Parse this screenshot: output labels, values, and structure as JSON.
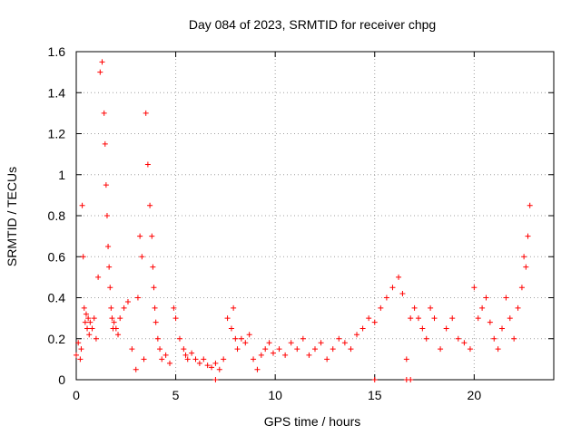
{
  "chart_data": {
    "type": "scatter",
    "title": "Day 084 of 2023, SRMTID for receiver chpg",
    "xlabel": "GPS time / hours",
    "ylabel": "SRMTID / TECUs",
    "xlim": [
      0,
      24
    ],
    "ylim": [
      0,
      1.6
    ],
    "xticks": [
      0,
      5,
      10,
      15,
      20
    ],
    "yticks": [
      0,
      0.2,
      0.4,
      0.6,
      0.8,
      1,
      1.2,
      1.4,
      1.6
    ],
    "xtick_labels": [
      "0",
      "5",
      "10",
      "15",
      "20"
    ],
    "ytick_labels": [
      "0",
      "0.2",
      "0.4",
      "0.6",
      "0.8",
      "1",
      "1.2",
      "1.4",
      "1.6"
    ],
    "grid": true,
    "marker": "plus",
    "color": "#ff0000",
    "series": [
      {
        "name": "SRMTID",
        "x": [
          0.0,
          0.1,
          0.2,
          0.25,
          0.3,
          0.35,
          0.4,
          0.45,
          0.5,
          0.55,
          0.6,
          0.65,
          0.7,
          0.8,
          0.9,
          1.0,
          1.1,
          1.2,
          1.3,
          1.4,
          1.45,
          1.5,
          1.55,
          1.6,
          1.65,
          1.7,
          1.75,
          1.8,
          1.85,
          1.9,
          2.0,
          2.1,
          2.2,
          2.4,
          2.6,
          2.8,
          3.0,
          3.1,
          3.2,
          3.3,
          3.4,
          3.5,
          3.6,
          3.7,
          3.8,
          3.85,
          3.9,
          3.95,
          4.0,
          4.1,
          4.2,
          4.3,
          4.5,
          4.7,
          4.9,
          5.0,
          5.2,
          5.4,
          5.5,
          5.6,
          5.8,
          6.0,
          6.2,
          6.4,
          6.6,
          6.8,
          7.0,
          7.2,
          7.4,
          7.6,
          7.8,
          7.9,
          8.0,
          8.1,
          8.3,
          8.5,
          8.7,
          8.9,
          9.1,
          9.3,
          9.5,
          9.7,
          9.9,
          10.2,
          10.5,
          10.8,
          11.1,
          11.4,
          11.7,
          12.0,
          12.3,
          12.6,
          12.9,
          13.2,
          13.5,
          13.8,
          14.1,
          14.4,
          14.7,
          15.0,
          15.3,
          15.6,
          15.9,
          16.2,
          16.4,
          16.6,
          16.8,
          17.0,
          17.2,
          17.4,
          17.6,
          17.8,
          18.0,
          18.3,
          18.6,
          18.9,
          19.2,
          19.5,
          19.8,
          20.0,
          20.2,
          20.4,
          20.6,
          20.8,
          21.0,
          21.2,
          21.4,
          21.6,
          21.8,
          22.0,
          22.2,
          22.4,
          22.5,
          22.6,
          22.7,
          22.8,
          7.0,
          15.0,
          16.6,
          16.8
        ],
        "y": [
          0.12,
          0.18,
          0.1,
          0.15,
          0.85,
          0.6,
          0.35,
          0.28,
          0.32,
          0.25,
          0.3,
          0.22,
          0.28,
          0.25,
          0.3,
          0.2,
          0.5,
          1.5,
          1.55,
          1.3,
          1.15,
          0.95,
          0.8,
          0.65,
          0.55,
          0.45,
          0.35,
          0.3,
          0.25,
          0.28,
          0.25,
          0.22,
          0.3,
          0.35,
          0.38,
          0.15,
          0.05,
          0.4,
          0.7,
          0.6,
          0.1,
          1.3,
          1.05,
          0.85,
          0.7,
          0.55,
          0.45,
          0.35,
          0.28,
          0.2,
          0.15,
          0.1,
          0.12,
          0.08,
          0.35,
          0.3,
          0.2,
          0.15,
          0.12,
          0.1,
          0.13,
          0.1,
          0.08,
          0.1,
          0.07,
          0.06,
          0.08,
          0.05,
          0.1,
          0.3,
          0.25,
          0.35,
          0.2,
          0.15,
          0.2,
          0.18,
          0.22,
          0.1,
          0.05,
          0.12,
          0.15,
          0.18,
          0.13,
          0.15,
          0.12,
          0.18,
          0.15,
          0.2,
          0.12,
          0.15,
          0.18,
          0.1,
          0.15,
          0.2,
          0.18,
          0.15,
          0.22,
          0.25,
          0.3,
          0.28,
          0.35,
          0.4,
          0.45,
          0.5,
          0.42,
          0.1,
          0.3,
          0.35,
          0.3,
          0.25,
          0.2,
          0.35,
          0.3,
          0.15,
          0.25,
          0.3,
          0.2,
          0.18,
          0.15,
          0.45,
          0.3,
          0.35,
          0.4,
          0.28,
          0.2,
          0.15,
          0.25,
          0.4,
          0.3,
          0.2,
          0.35,
          0.45,
          0.6,
          0.55,
          0.7,
          0.85,
          0.0,
          0.0,
          0.0,
          0.0
        ]
      }
    ]
  }
}
